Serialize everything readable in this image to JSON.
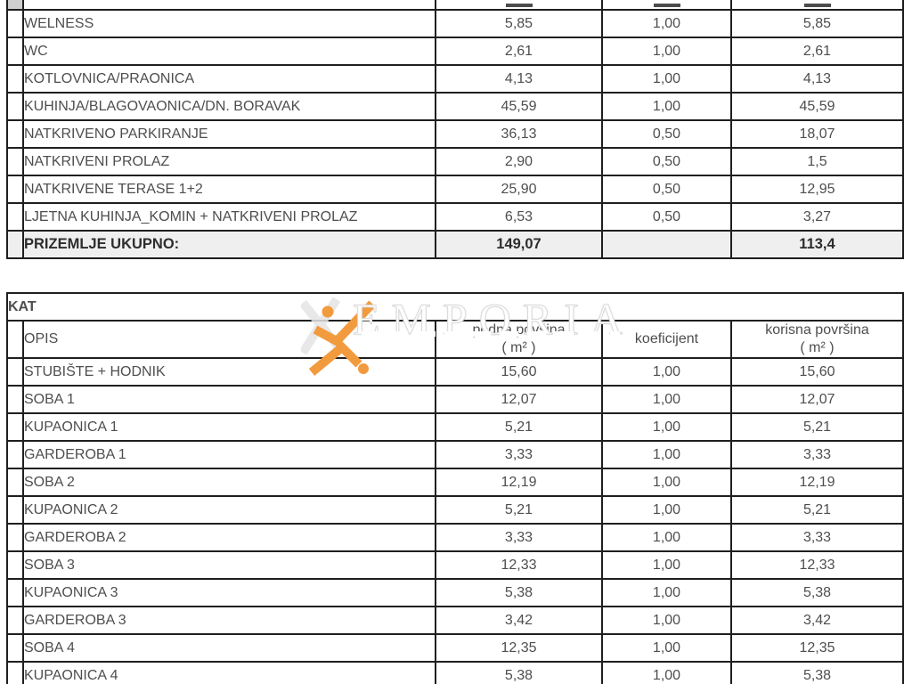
{
  "watermark": {
    "text": "EMPORIA",
    "logo": "emporia-x-logo",
    "orange": "#F29B3E"
  },
  "ground_table": {
    "total_row_background": "#efefef",
    "rows": [
      {
        "type": "clipped",
        "label": "",
        "podna": "",
        "koef": "",
        "korisna": ""
      },
      {
        "type": "data",
        "label": "WELNESS",
        "podna": "5,85",
        "koef": "1,00",
        "korisna": "5,85"
      },
      {
        "type": "data",
        "label": "WC",
        "podna": "2,61",
        "koef": "1,00",
        "korisna": "2,61"
      },
      {
        "type": "data",
        "label": "KOTLOVNICA/PRAONICA",
        "podna": "4,13",
        "koef": "1,00",
        "korisna": "4,13"
      },
      {
        "type": "data",
        "label": "KUHINJA/BLAGOVAONICA/DN. BORAVAK",
        "podna": "45,59",
        "koef": "1,00",
        "korisna": "45,59"
      },
      {
        "type": "data",
        "label": "NATKRIVENO PARKIRANJE",
        "podna": "36,13",
        "koef": "0,50",
        "korisna": "18,07"
      },
      {
        "type": "data",
        "label": "NATKRIVENI PROLAZ",
        "podna": "2,90",
        "koef": "0,50",
        "korisna": "1,5"
      },
      {
        "type": "data",
        "label": "NATKRIVENE TERASE 1+2",
        "podna": "25,90",
        "koef": "0,50",
        "korisna": "12,95"
      },
      {
        "type": "data",
        "label": "LJETNA KUHINJA_KOMIN + NATKRIVENI PROLAZ",
        "podna": "6,53",
        "koef": "0,50",
        "korisna": "3,27"
      },
      {
        "type": "total",
        "label": "PRIZEMLJE UKUPNO:",
        "podna": "149,07",
        "koef": "",
        "korisna": "113,4"
      }
    ]
  },
  "floor_table": {
    "section_title": "KAT",
    "headers": {
      "opis": "OPIS",
      "podna_line1": "podna povšina",
      "podna_line2": "( m² )",
      "koeficijent": "koeficijent",
      "korisna_line1": "korisna površina",
      "korisna_line2": "( m² )"
    },
    "rows": [
      {
        "type": "data",
        "label": "STUBIŠTE + HODNIK",
        "podna": "15,60",
        "koef": "1,00",
        "korisna": "15,60"
      },
      {
        "type": "data",
        "label": "SOBA 1",
        "podna": "12,07",
        "koef": "1,00",
        "korisna": "12,07"
      },
      {
        "type": "data",
        "label": "KUPAONICA 1",
        "podna": "5,21",
        "koef": "1,00",
        "korisna": "5,21"
      },
      {
        "type": "data",
        "label": "GARDEROBA 1",
        "podna": "3,33",
        "koef": "1,00",
        "korisna": "3,33"
      },
      {
        "type": "data",
        "label": "SOBA 2",
        "podna": "12,19",
        "koef": "1,00",
        "korisna": "12,19"
      },
      {
        "type": "data",
        "label": "KUPAONICA 2",
        "podna": "5,21",
        "koef": "1,00",
        "korisna": "5,21"
      },
      {
        "type": "data",
        "label": "GARDEROBA 2",
        "podna": "3,33",
        "koef": "1,00",
        "korisna": "3,33"
      },
      {
        "type": "data",
        "label": "SOBA 3",
        "podna": "12,33",
        "koef": "1,00",
        "korisna": "12,33"
      },
      {
        "type": "data",
        "label": "KUPAONICA 3",
        "podna": "5,38",
        "koef": "1,00",
        "korisna": "5,38"
      },
      {
        "type": "data",
        "label": "GARDEROBA 3",
        "podna": "3,42",
        "koef": "1,00",
        "korisna": "3,42"
      },
      {
        "type": "data",
        "label": "SOBA 4",
        "podna": "12,35",
        "koef": "1,00",
        "korisna": "12,35"
      },
      {
        "type": "data",
        "label": "KUPAONICA 4",
        "podna": "5,38",
        "koef": "1,00",
        "korisna": "5,38"
      }
    ]
  }
}
